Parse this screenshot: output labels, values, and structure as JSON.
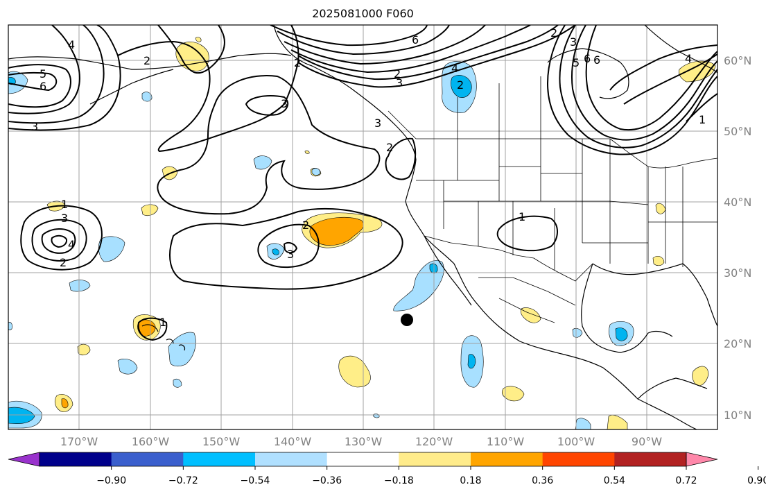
{
  "title": "2025081000 F060",
  "colors": {
    "pos_low": "#ffee88",
    "pos_mid": "#ffa500",
    "neg_low": "#a8e0ff",
    "neg_mid": "#00b4f0",
    "contour": "#000000",
    "grid": "#a0a0a0"
  },
  "lat_labels": [
    "60°N",
    "50°N",
    "40°N",
    "30°N",
    "20°N",
    "10°N"
  ],
  "lon_labels": [
    "170°W",
    "160°W",
    "150°W",
    "140°W",
    "130°W",
    "120°W",
    "110°W",
    "100°W",
    "90°W"
  ],
  "colorbar": {
    "colors": [
      "#9932cc",
      "#00008b",
      "#3a5fcd",
      "#00bfff",
      "#b0e0ff",
      "#ffffff",
      "#ffec8b",
      "#ffa500",
      "#ff4500",
      "#b22222",
      "#ff88aa"
    ],
    "ticks": [
      "−0.90",
      "−0.72",
      "−0.54",
      "−0.36",
      "−0.18",
      "0.18",
      "0.36",
      "0.54",
      "0.72",
      "0.90"
    ]
  },
  "contour_labels": [
    "6",
    "4",
    "2",
    "5",
    "6",
    "3",
    "2",
    "3",
    "2",
    "3",
    "6",
    "2",
    "3",
    "4",
    "2",
    "3",
    "6",
    "5",
    "4",
    "1",
    "2",
    "1",
    "3",
    "4",
    "2",
    "2",
    "3",
    "1",
    "1"
  ]
}
